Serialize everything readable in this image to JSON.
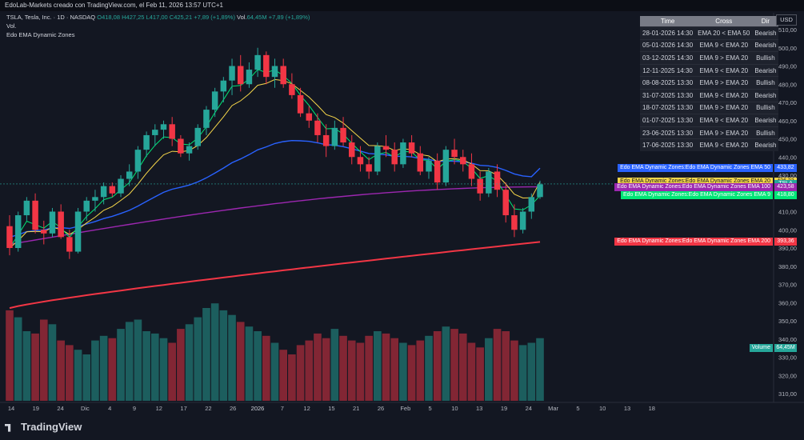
{
  "header": {
    "topbar": "EdoLab-Markets creado con TradingView.com, el Feb 11, 2026 13:57 UTC+1",
    "symbol": "TSLA, Tesla, Inc. · 1D · NASDAQ",
    "o": "O418,08",
    "h": "H427,25",
    "l": "L417,00",
    "c": "C425,21",
    "chg": "+7,89 (+1,89%)",
    "vol_label": "Vol.",
    "vol_value": "64,45M",
    "vol_chg": "+7,89 (+1,89%)",
    "vol_row": "Vol.",
    "indicator": "Edo EMA Dynamic Zones"
  },
  "currency": "USD",
  "brand": "TradingView",
  "table": {
    "headers": [
      "Time",
      "Cross",
      "Dir"
    ],
    "rows": [
      [
        "28-01-2026 14:30",
        "EMA 20 < EMA 50",
        "Bearish"
      ],
      [
        "05-01-2026 14:30",
        "EMA 9 < EMA 20",
        "Bearish"
      ],
      [
        "03-12-2025 14:30",
        "EMA 9 > EMA 20",
        "Bullish"
      ],
      [
        "12-11-2025 14:30",
        "EMA 9 < EMA 20",
        "Bearish"
      ],
      [
        "08-08-2025 13:30",
        "EMA 9 > EMA 20",
        "Bullish"
      ],
      [
        "31-07-2025 13:30",
        "EMA 9 < EMA 20",
        "Bearish"
      ],
      [
        "18-07-2025 13:30",
        "EMA 9 > EMA 20",
        "Bullish"
      ],
      [
        "01-07-2025 13:30",
        "EMA 9 < EMA 20",
        "Bearish"
      ],
      [
        "23-06-2025 13:30",
        "EMA 9 > EMA 20",
        "Bullish"
      ],
      [
        "17-06-2025 13:30",
        "EMA 9 < EMA 20",
        "Bearish"
      ]
    ]
  },
  "labels": [
    {
      "text": "Edo EMA Dynamic Zones:Edo EMA Dynamic Zones EMA 50",
      "price": "433,82",
      "color": "#2962ff",
      "value": 433.82
    },
    {
      "text": "Edo EMA Dynamic Zones:Edo EMA Dynamic Zones EMA 20",
      "price": "426,33",
      "color": "#f7d74a",
      "value": 426.33
    },
    {
      "text": "TSLA",
      "price": "",
      "color": "#26a69a",
      "value": 425.21
    },
    {
      "text": "Edo EMA Dynamic Zones:Edo EMA Dynamic Zones EMA 100",
      "price": "423,58",
      "color": "#9c27b0",
      "value": 423.58
    },
    {
      "text": "Edo EMA Dynamic Zones:Edo EMA Dynamic Zones EMA 9",
      "price": "418,80",
      "color": "#00e676",
      "value": 418.8
    },
    {
      "text": "Edo EMA Dynamic Zones:Edo EMA Dynamic Zones EMA 200",
      "price": "393,36",
      "color": "#f23645",
      "value": 393.36
    },
    {
      "text": "Volume",
      "price": "64,45M",
      "color": "#26a69a",
      "value": 335
    }
  ],
  "chart_data": {
    "type": "candlestick",
    "ylim": [
      305,
      515
    ],
    "y_ticks": [
      310,
      320,
      330,
      340,
      350,
      360,
      370,
      380,
      390,
      400,
      410,
      420,
      430,
      440,
      450,
      460,
      470,
      480,
      490,
      500,
      510
    ],
    "x_ticks": [
      "14",
      "19",
      "24",
      "Dic",
      "4",
      "9",
      "12",
      "17",
      "22",
      "26",
      "2026",
      "7",
      "12",
      "15",
      "21",
      "26",
      "Feb",
      "5",
      "10",
      "13",
      "19",
      "24",
      "Mar",
      "5",
      "10",
      "13",
      "18"
    ],
    "colors": {
      "up": "#26a69a",
      "down": "#f23645",
      "ema9": "#00e676",
      "ema20": "#f7d74a",
      "ema50": "#2962ff",
      "ema100": "#9c27b0",
      "ema200": "#f23645"
    },
    "ohlc": [
      [
        402,
        408,
        386,
        390
      ],
      [
        390,
        410,
        388,
        408
      ],
      [
        408,
        418,
        405,
        416
      ],
      [
        416,
        420,
        398,
        400
      ],
      [
        400,
        405,
        392,
        398
      ],
      [
        398,
        412,
        396,
        410
      ],
      [
        410,
        414,
        395,
        396
      ],
      [
        396,
        400,
        384,
        388
      ],
      [
        388,
        412,
        387,
        410
      ],
      [
        410,
        418,
        405,
        416
      ],
      [
        416,
        422,
        410,
        418
      ],
      [
        418,
        426,
        414,
        424
      ],
      [
        424,
        426,
        418,
        420
      ],
      [
        420,
        430,
        418,
        428
      ],
      [
        428,
        436,
        424,
        432
      ],
      [
        432,
        446,
        428,
        444
      ],
      [
        444,
        454,
        440,
        452
      ],
      [
        452,
        458,
        446,
        455
      ],
      [
        455,
        460,
        450,
        458
      ],
      [
        458,
        462,
        446,
        450
      ],
      [
        450,
        452,
        440,
        442
      ],
      [
        442,
        448,
        438,
        446
      ],
      [
        446,
        458,
        444,
        456
      ],
      [
        456,
        468,
        452,
        466
      ],
      [
        466,
        478,
        462,
        476
      ],
      [
        476,
        484,
        470,
        482
      ],
      [
        482,
        494,
        474,
        490
      ],
      [
        490,
        496,
        476,
        480
      ],
      [
        480,
        492,
        478,
        488
      ],
      [
        488,
        500,
        484,
        496
      ],
      [
        496,
        498,
        480,
        484
      ],
      [
        484,
        494,
        478,
        490
      ],
      [
        490,
        494,
        478,
        480
      ],
      [
        480,
        486,
        472,
        474
      ],
      [
        474,
        478,
        462,
        464
      ],
      [
        464,
        468,
        456,
        460
      ],
      [
        460,
        464,
        448,
        452
      ],
      [
        452,
        458,
        440,
        446
      ],
      [
        446,
        460,
        444,
        456
      ],
      [
        456,
        462,
        446,
        448
      ],
      [
        448,
        452,
        436,
        440
      ],
      [
        440,
        446,
        432,
        436
      ],
      [
        436,
        440,
        428,
        432
      ],
      [
        432,
        448,
        430,
        446
      ],
      [
        446,
        452,
        440,
        444
      ],
      [
        444,
        448,
        432,
        436
      ],
      [
        436,
        450,
        434,
        448
      ],
      [
        448,
        452,
        440,
        442
      ],
      [
        442,
        446,
        430,
        432
      ],
      [
        432,
        440,
        428,
        438
      ],
      [
        438,
        442,
        422,
        426
      ],
      [
        426,
        446,
        424,
        444
      ],
      [
        444,
        450,
        436,
        440
      ],
      [
        440,
        444,
        432,
        436
      ],
      [
        436,
        442,
        424,
        428
      ],
      [
        428,
        432,
        416,
        420
      ],
      [
        420,
        434,
        418,
        432
      ],
      [
        432,
        436,
        418,
        422
      ],
      [
        422,
        426,
        404,
        408
      ],
      [
        408,
        414,
        396,
        400
      ],
      [
        400,
        412,
        398,
        410
      ],
      [
        410,
        420,
        406,
        418
      ],
      [
        418,
        427,
        417,
        425
      ]
    ],
    "volume": [
      78,
      72,
      60,
      58,
      70,
      66,
      52,
      48,
      44,
      40,
      52,
      56,
      54,
      62,
      68,
      70,
      60,
      58,
      54,
      50,
      62,
      66,
      72,
      80,
      84,
      78,
      74,
      68,
      64,
      60,
      56,
      50,
      44,
      40,
      48,
      52,
      58,
      54,
      62,
      56,
      52,
      50,
      56,
      60,
      58,
      54,
      50,
      48,
      52,
      56,
      60,
      64,
      62,
      58,
      50,
      46,
      54,
      62,
      60,
      52,
      48,
      50,
      54
    ]
  }
}
